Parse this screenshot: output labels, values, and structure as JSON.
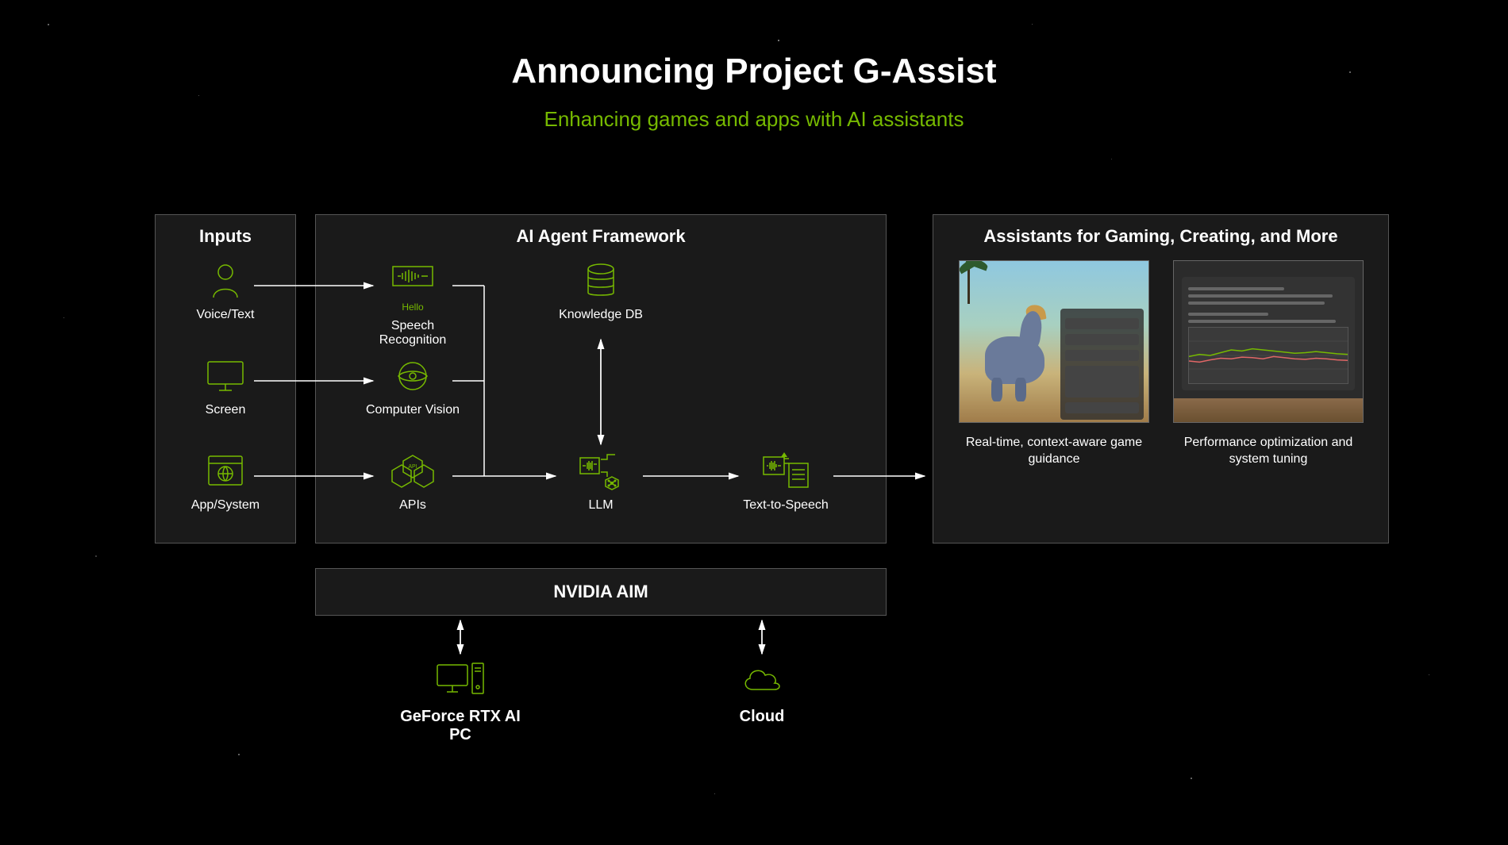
{
  "title": "Announcing Project G-Assist",
  "subtitle": "Enhancing games and apps with AI assistants",
  "colors": {
    "background": "#000000",
    "panel_bg": "#1a1a1a",
    "panel_border": "#555555",
    "accent": "#76b900",
    "text": "#ffffff",
    "arrow": "#ffffff"
  },
  "panels": {
    "inputs": {
      "title": "Inputs",
      "nodes": [
        {
          "id": "voice",
          "label": "Voice/Text",
          "icon": "person"
        },
        {
          "id": "screen",
          "label": "Screen",
          "icon": "monitor"
        },
        {
          "id": "appsys",
          "label": "App/System",
          "icon": "window-globe"
        }
      ]
    },
    "framework": {
      "title": "AI Agent Framework",
      "nodes": [
        {
          "id": "asr",
          "label": "Speech Recognition",
          "sublabel": "Hello",
          "icon": "waveform-box"
        },
        {
          "id": "cv",
          "label": "Computer Vision",
          "icon": "eye"
        },
        {
          "id": "apis",
          "label": "APIs",
          "icon": "hex-api"
        },
        {
          "id": "kdb",
          "label": "Knowledge DB",
          "icon": "database"
        },
        {
          "id": "llm",
          "label": "LLM",
          "icon": "chip-net"
        },
        {
          "id": "tts",
          "label": "Text-to-Speech",
          "icon": "wave-doc"
        }
      ]
    },
    "assistants": {
      "title": "Assistants for Gaming, Creating, and More",
      "cards": [
        {
          "id": "guidance",
          "caption": "Real-time, context-aware game guidance"
        },
        {
          "id": "perf",
          "caption": "Performance optimization and system tuning"
        }
      ]
    },
    "aim": {
      "title": "NVIDIA AIM"
    },
    "bottom": [
      {
        "id": "pc",
        "label": "GeForce RTX AI PC",
        "icon": "desktop-pc"
      },
      {
        "id": "cloud",
        "label": "Cloud",
        "icon": "cloud"
      }
    ]
  },
  "perf_chart": {
    "series1_color": "#76b900",
    "series2_color": "#e06666",
    "series1": [
      48,
      52,
      50,
      55,
      60,
      58,
      62,
      60,
      58,
      56,
      54,
      55,
      57,
      55,
      53,
      52
    ],
    "series2": [
      40,
      38,
      42,
      45,
      44,
      47,
      46,
      44,
      48,
      46,
      44,
      43,
      45,
      44,
      42,
      41
    ],
    "ymin": 0,
    "ymax": 100
  },
  "arrows": [
    {
      "from": "voice",
      "to": "asr",
      "type": "h"
    },
    {
      "from": "screen",
      "to": "cv",
      "type": "h"
    },
    {
      "from": "appsys",
      "to": "apis",
      "type": "h"
    },
    {
      "from": "asr_cv_apis_bus",
      "to": "llm",
      "type": "elbow"
    },
    {
      "from": "kdb",
      "to": "llm",
      "type": "v-bi"
    },
    {
      "from": "llm",
      "to": "tts",
      "type": "h"
    },
    {
      "from": "tts",
      "to": "assistants",
      "type": "h"
    },
    {
      "from": "aim",
      "to": "pc",
      "type": "v-bi"
    },
    {
      "from": "aim",
      "to": "cloud",
      "type": "v-bi"
    }
  ]
}
